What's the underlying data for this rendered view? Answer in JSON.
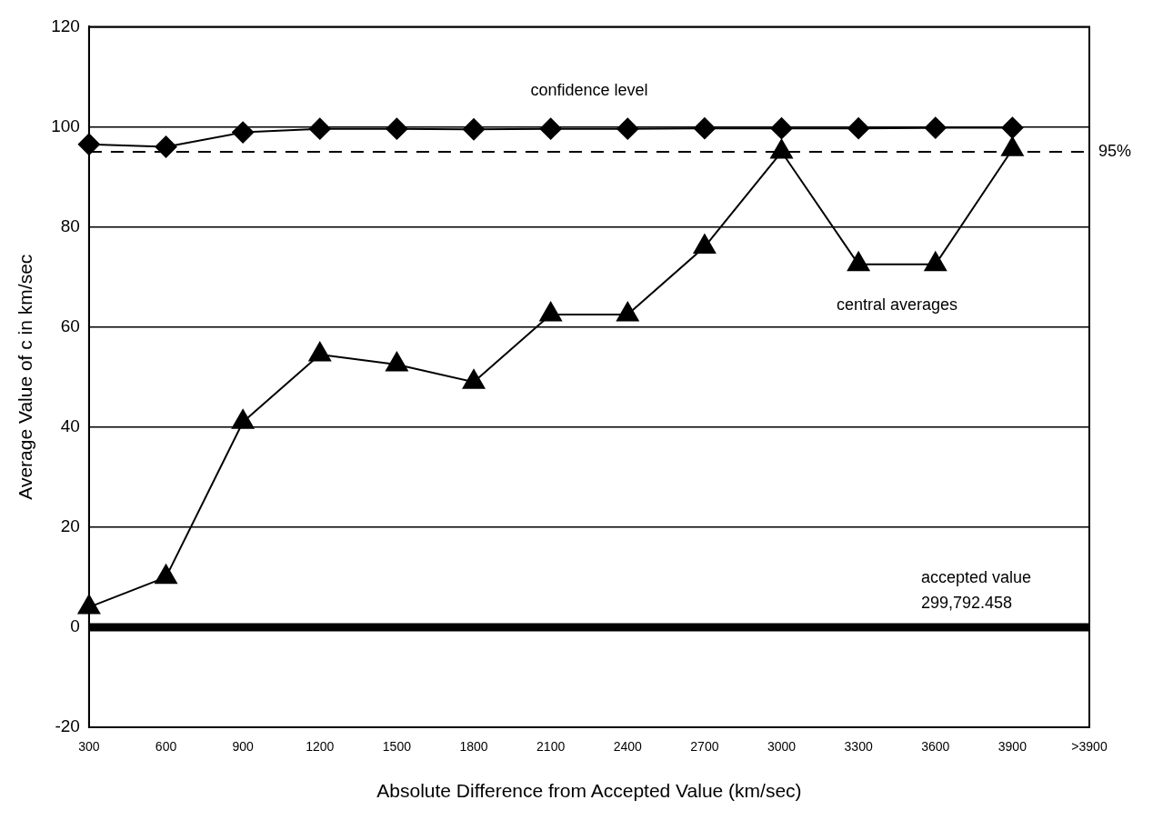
{
  "chart_data": {
    "type": "line",
    "xlabel": "Absolute Difference from Accepted Value (km/sec)",
    "ylabel": "Average Value of c in km/sec",
    "categories": [
      "300",
      "600",
      "900",
      "1200",
      "1500",
      "1800",
      "2100",
      "2400",
      "2700",
      "3000",
      "3300",
      "3600",
      "3900",
      ">3900"
    ],
    "series": [
      {
        "name": "confidence level",
        "color": "#000000",
        "marker": "diamond",
        "values": [
          96.5,
          96,
          98.9,
          99.6,
          99.6,
          99.5,
          99.6,
          99.6,
          99.7,
          99.7,
          99.7,
          99.8,
          99.8,
          null
        ]
      },
      {
        "name": "central averages",
        "color": "#000000",
        "marker": "triangle",
        "values": [
          4,
          10,
          41,
          54.5,
          52.5,
          49,
          62.5,
          62.5,
          76,
          95,
          72.5,
          72.5,
          95.5,
          null
        ]
      }
    ],
    "ylim": [
      -20,
      120
    ],
    "yticks": [
      -20,
      0,
      20,
      40,
      60,
      80,
      100,
      120
    ],
    "grid": "y",
    "legend": false,
    "line_style": "solid",
    "ref_lines": [
      {
        "axis": "y",
        "value": 95,
        "label": "95%",
        "line_style": "dashed",
        "color": "#000000"
      },
      {
        "axis": "y",
        "value": 0,
        "label": "accepted value\n299,792.458",
        "line_style": "solid",
        "color": "#000000"
      }
    ]
  }
}
